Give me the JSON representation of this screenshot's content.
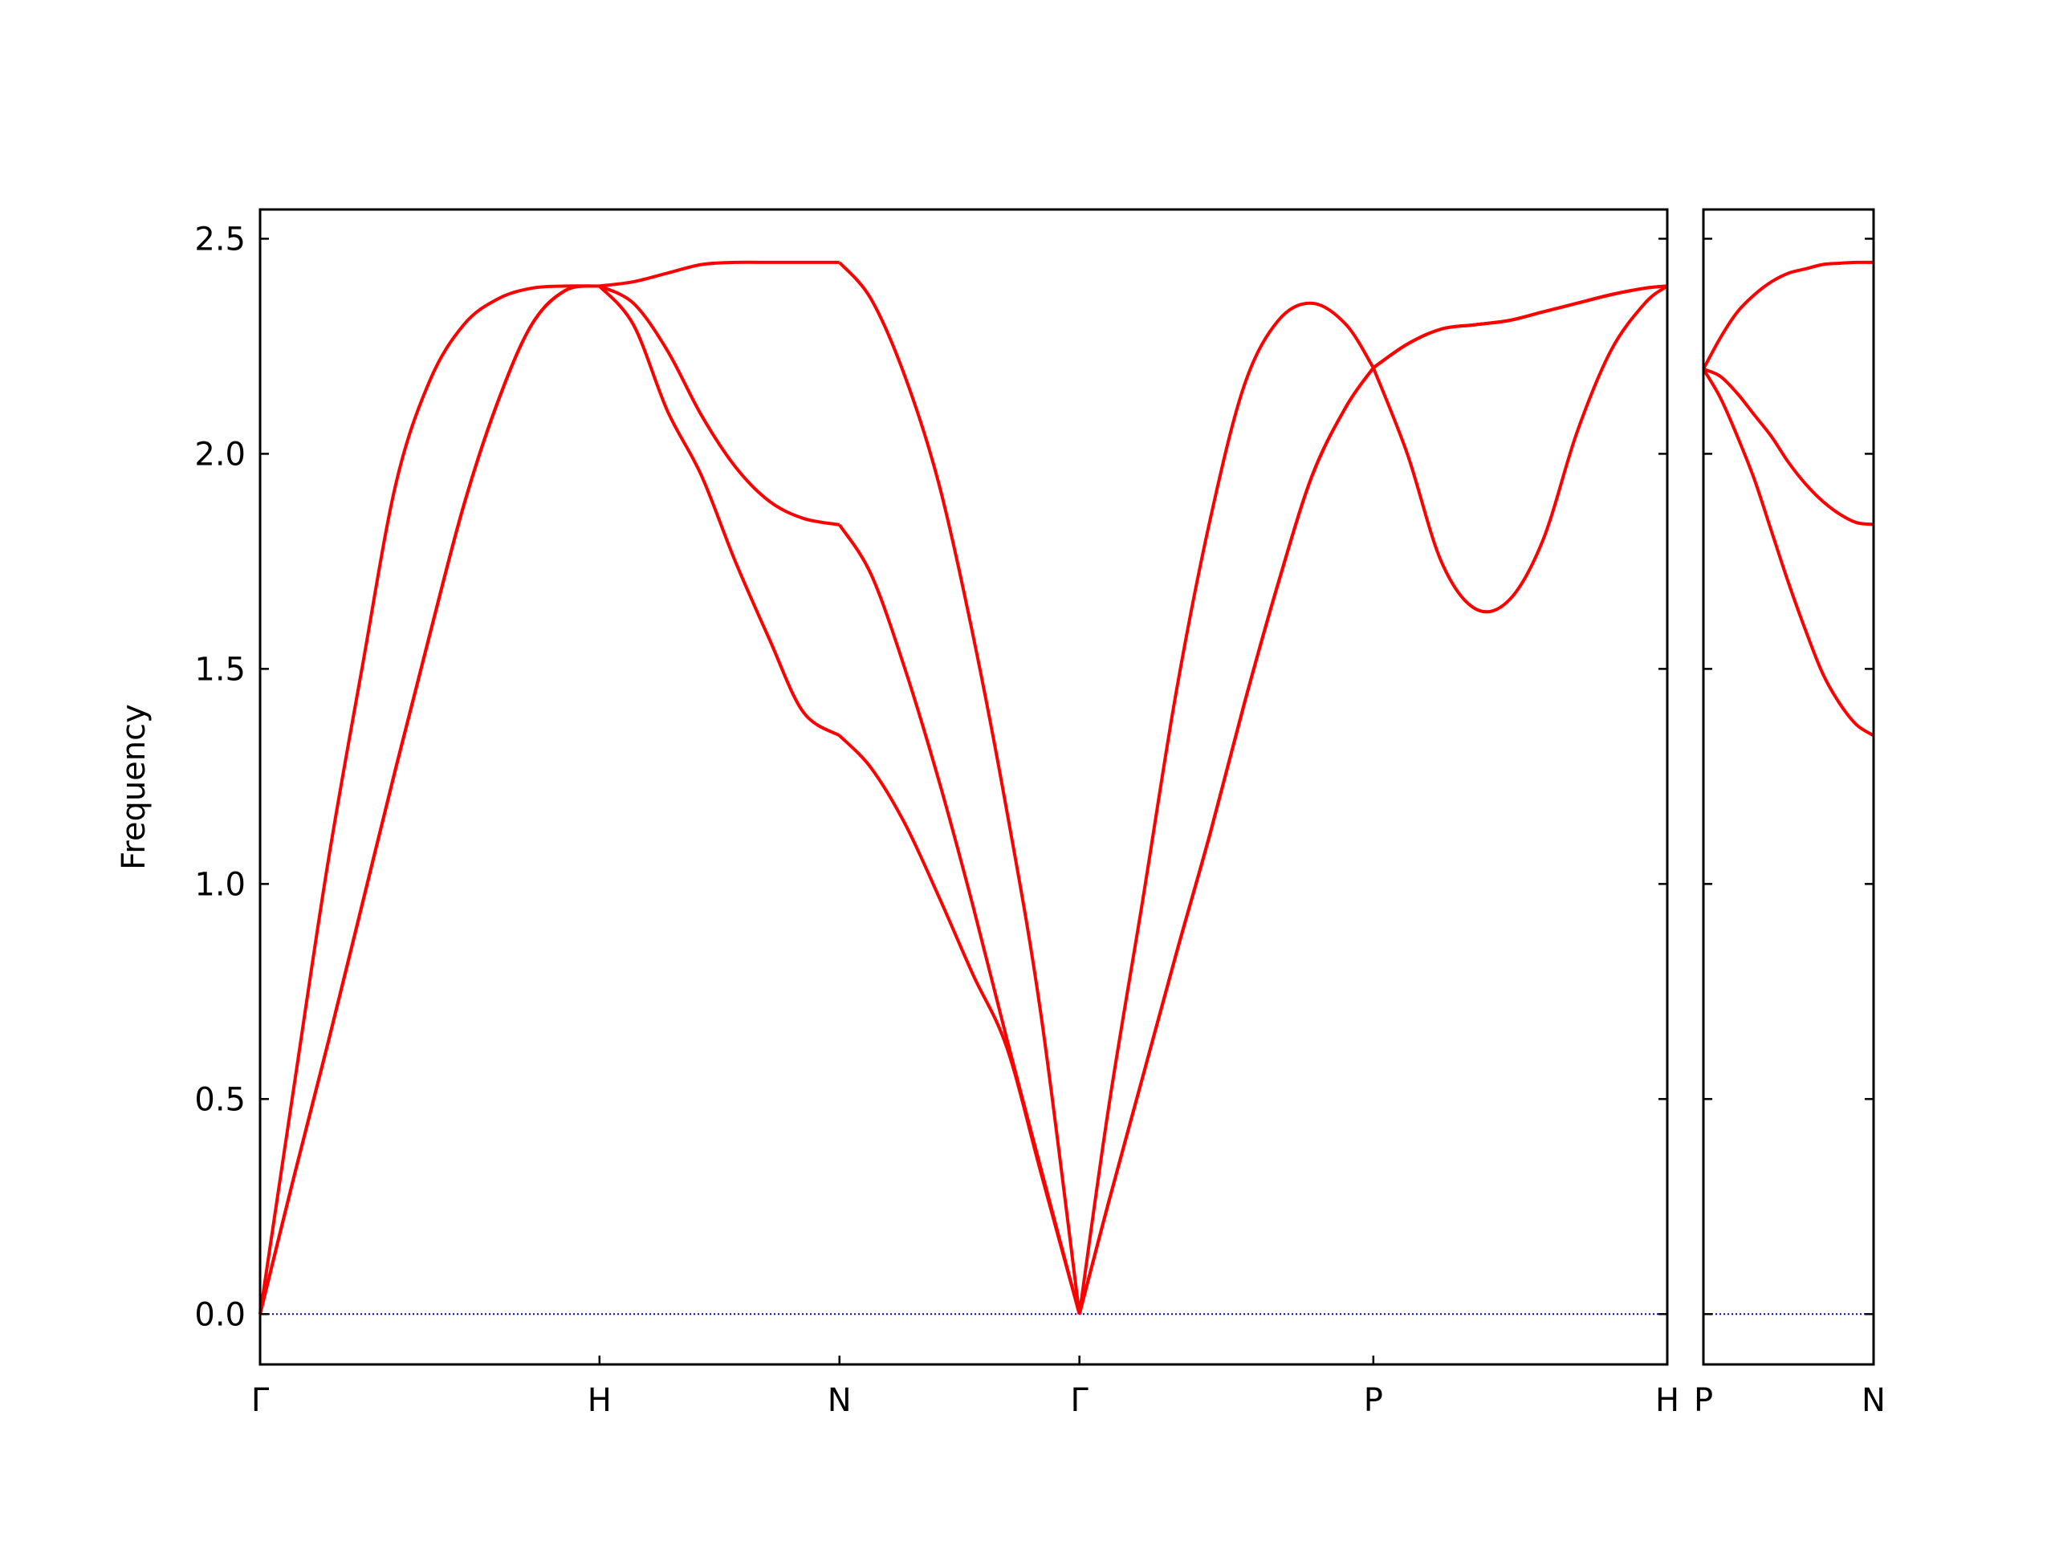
{
  "chart_data": [
    {
      "type": "line",
      "ylabel": "Frequency",
      "x": [
        0,
        0.1,
        0.2,
        0.3,
        0.4,
        0.5,
        0.6,
        0.7,
        0.8,
        0.9,
        1,
        1.1,
        1.2,
        1.3,
        1.4,
        1.5,
        1.6,
        1.707,
        1.8,
        1.9,
        2.0,
        2.1,
        2.2,
        2.3,
        2.414,
        2.5,
        2.6,
        2.7,
        2.8,
        2.9,
        3.0,
        3.1,
        3.2,
        3.28,
        3.38,
        3.48,
        3.58,
        3.68,
        3.78,
        3.88,
        3.98,
        4.08,
        4.146
      ],
      "series": [
        {
          "color": "#ff0000",
          "values": [
            0,
            0.53,
            1.05,
            1.5,
            1.93,
            2.17,
            2.3,
            2.36,
            2.385,
            2.39,
            2.39,
            2.4,
            2.42,
            2.44,
            2.445,
            2.445,
            2.445,
            2.445,
            2.36,
            2.18,
            1.93,
            1.58,
            1.17,
            0.7,
            0,
            0.48,
            0.96,
            1.45,
            1.85,
            2.16,
            2.31,
            2.35,
            2.3,
            2.2,
            2.0,
            1.75,
            1.64,
            1.66,
            1.8,
            2.05,
            2.24,
            2.35,
            2.39
          ]
        },
        {
          "color": "#ff0000",
          "values": [
            0,
            0.32,
            0.63,
            0.95,
            1.27,
            1.58,
            1.88,
            2.12,
            2.3,
            2.38,
            2.39,
            2.35,
            2.24,
            2.09,
            1.97,
            1.89,
            1.85,
            1.835,
            1.72,
            1.5,
            1.24,
            0.95,
            0.64,
            0.34,
            0,
            0.26,
            0.55,
            0.84,
            1.12,
            1.42,
            1.7,
            1.95,
            2.11,
            2.2,
            2.255,
            2.29,
            2.3,
            2.31,
            2.33,
            2.35,
            2.37,
            2.385,
            2.39
          ]
        },
        {
          "color": "#ff0000",
          "values": [
            0,
            0.32,
            0.63,
            0.95,
            1.27,
            1.58,
            1.88,
            2.12,
            2.3,
            2.38,
            2.39,
            2.3,
            2.1,
            1.95,
            1.75,
            1.57,
            1.4,
            1.345,
            1.27,
            1.14,
            0.97,
            0.79,
            0.62,
            0.33,
            0,
            0.26,
            0.55,
            0.84,
            1.12,
            1.42,
            1.7,
            1.95,
            2.11,
            2.2,
            2.255,
            2.29,
            2.3,
            2.31,
            2.33,
            2.35,
            2.37,
            2.385,
            2.39
          ]
        }
      ],
      "xlim": [
        0,
        4.146
      ],
      "xticks": [
        {
          "value": 0,
          "label": "Γ"
        },
        {
          "value": 1,
          "label": "H"
        },
        {
          "value": 1.707,
          "label": "N"
        },
        {
          "value": 2.414,
          "label": "Γ"
        },
        {
          "value": 3.28,
          "label": "P"
        },
        {
          "value": 4.146,
          "label": "H"
        }
      ],
      "ylim": [
        -0.117,
        2.568
      ],
      "yticks": [
        {
          "value": 0,
          "label": "0.0"
        },
        0.5,
        {
          "value": 1,
          "label": "1.0"
        },
        1.5,
        {
          "value": 2,
          "label": "2.0"
        },
        2.5
      ],
      "show_ytick_labels": true,
      "zero_line": 0,
      "zero_line_color": "#0000cc"
    },
    {
      "type": "line",
      "x": [
        4.146,
        4.196,
        4.246,
        4.296,
        4.346,
        4.396,
        4.446,
        4.496,
        4.546,
        4.596,
        4.646
      ],
      "series": [
        {
          "color": "#ff0000",
          "values": [
            2.197,
            2.27,
            2.33,
            2.37,
            2.4,
            2.42,
            2.43,
            2.44,
            2.443,
            2.445,
            2.445
          ]
        },
        {
          "color": "#ff0000",
          "values": [
            2.197,
            2.18,
            2.14,
            2.09,
            2.04,
            1.98,
            1.93,
            1.89,
            1.86,
            1.84,
            1.836
          ]
        },
        {
          "color": "#ff0000",
          "values": [
            2.197,
            2.13,
            2.04,
            1.94,
            1.82,
            1.7,
            1.59,
            1.49,
            1.42,
            1.37,
            1.345
          ]
        }
      ],
      "xlim": [
        4.146,
        4.646
      ],
      "xticks": [
        {
          "value": 4.146,
          "label": "P"
        },
        {
          "value": 4.646,
          "label": "N"
        }
      ],
      "ylim": [
        -0.117,
        2.568
      ],
      "yticks": [
        0,
        0.5,
        1,
        1.5,
        2,
        2.5
      ],
      "show_ytick_labels": false,
      "zero_line": 0,
      "zero_line_color": "#0000cc"
    }
  ]
}
